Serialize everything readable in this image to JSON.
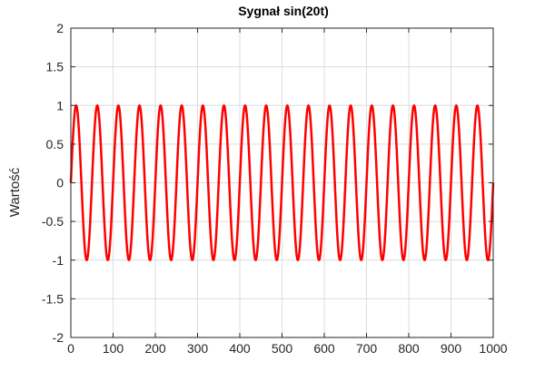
{
  "chart_data": {
    "type": "line",
    "title": "Sygnał sin(20t)",
    "xlabel": "",
    "ylabel": "Wartość",
    "xlim": [
      0,
      1000
    ],
    "ylim": [
      -2,
      2
    ],
    "x_ticks": [
      0,
      100,
      200,
      300,
      400,
      500,
      600,
      700,
      800,
      900,
      1000
    ],
    "y_ticks": [
      2,
      1.5,
      1,
      0.5,
      0,
      -0.5,
      -1,
      -1.5,
      -2
    ],
    "x_tick_labels": [
      "0",
      "100",
      "200",
      "300",
      "400",
      "500",
      "600",
      "700",
      "800",
      "900",
      "1000"
    ],
    "y_tick_labels": [
      "2",
      "1.5",
      "1",
      "0.5",
      "0",
      "-0.5",
      "-1",
      "-1.5",
      "-2"
    ],
    "grid": true,
    "series": [
      {
        "function": "sin(20t)",
        "x_start": 0,
        "x_end": 1000,
        "amplitude": 1,
        "period": 50,
        "color": "#ff0000"
      }
    ]
  }
}
